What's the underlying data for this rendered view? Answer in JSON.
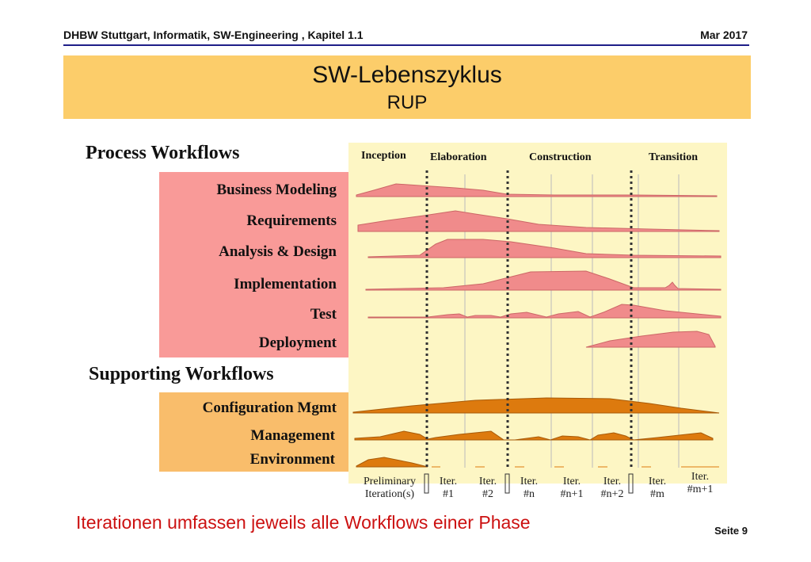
{
  "header": {
    "left": "DHBW Stuttgart, Informatik, SW-Engineering , Kapitel 1.1",
    "right": "Mar 2017"
  },
  "title": {
    "main": "SW-Lebenszyklus",
    "sub": "RUP"
  },
  "sections": {
    "process": "Process Workflows",
    "supporting": "Supporting Workflows"
  },
  "phases": [
    "Inception",
    "Elaboration",
    "Construction",
    "Transition"
  ],
  "process_workflows": [
    "Business Modeling",
    "Requirements",
    "Analysis & Design",
    "Implementation",
    "Test",
    "Deployment"
  ],
  "supporting_workflows": [
    "Configuration Mgmt",
    "Management",
    "Environment"
  ],
  "iterations": [
    [
      "Preliminary",
      "Iteration(s)"
    ],
    [
      "Iter.",
      "#1"
    ],
    [
      "Iter.",
      "#2"
    ],
    [
      "Iter.",
      "#n"
    ],
    [
      "Iter.",
      "#n+1"
    ],
    [
      "Iter.",
      "#n+2"
    ],
    [
      "Iter.",
      "#m"
    ],
    [
      "Iter.",
      "#m+1"
    ]
  ],
  "colors": {
    "process": "#f99a98",
    "supporting": "#f9bd6b",
    "process_curve": "#f08b8b",
    "supporting_curve": "#dd7a0e",
    "title_bg": "#fccd6a",
    "chart_bg": "#fdf6c4",
    "footer": "#cc1111"
  },
  "footer": {
    "text": "Iterationen umfassen jeweils alle Workflows einer Phase",
    "page": "Seite 9"
  }
}
